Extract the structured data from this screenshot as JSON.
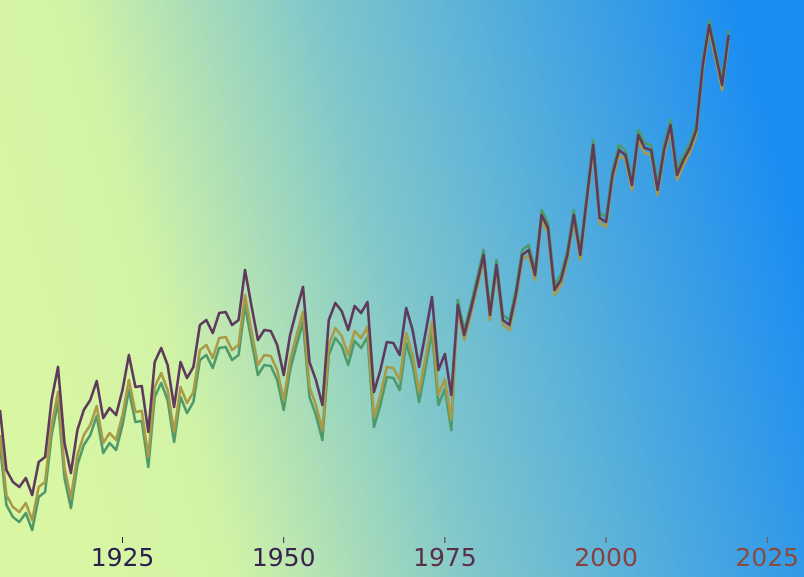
{
  "chart_data": {
    "type": "line",
    "x": [
      1906,
      1907,
      1908,
      1909,
      1910,
      1911,
      1912,
      1913,
      1914,
      1915,
      1916,
      1917,
      1918,
      1919,
      1920,
      1921,
      1922,
      1923,
      1924,
      1925,
      1926,
      1927,
      1928,
      1929,
      1930,
      1931,
      1932,
      1933,
      1934,
      1935,
      1936,
      1937,
      1938,
      1939,
      1940,
      1941,
      1942,
      1943,
      1944,
      1945,
      1946,
      1947,
      1948,
      1949,
      1950,
      1951,
      1952,
      1953,
      1954,
      1955,
      1956,
      1957,
      1958,
      1959,
      1960,
      1961,
      1962,
      1963,
      1964,
      1965,
      1966,
      1967,
      1968,
      1969,
      1970,
      1971,
      1972,
      1973,
      1974,
      1975,
      1976,
      1977,
      1978,
      1979,
      1980,
      1981,
      1982,
      1983,
      1984,
      1985,
      1986,
      1987,
      1988,
      1989,
      1990,
      1991,
      1992,
      1993,
      1994,
      1995,
      1996,
      1997,
      1998,
      1999,
      2000,
      2001,
      2002,
      2003,
      2004,
      2005,
      2006,
      2007,
      2008,
      2009,
      2010,
      2011,
      2012,
      2013,
      2014,
      2015,
      2016,
      2017,
      2018,
      2019
    ],
    "series": [
      {
        "color": "#4f9a6a",
        "values": [
          100,
          40,
          28,
          23,
          32,
          15,
          48,
          53,
          110,
          143,
          67,
          37,
          80,
          100,
          110,
          129,
          92,
          102,
          95,
          120,
          155,
          123,
          124,
          78,
          148,
          162,
          145,
          103,
          148,
          132,
          143,
          185,
          190,
          177,
          197,
          198,
          185,
          190,
          240,
          204,
          170,
          180,
          179,
          165,
          135,
          175,
          200,
          223,
          148,
          130,
          105,
          190,
          207,
          199,
          180,
          204,
          197,
          208,
          118,
          140,
          168,
          167,
          155,
          202,
          180,
          143,
          177,
          213,
          140,
          156,
          115,
          245,
          215,
          240,
          267,
          295,
          235,
          285,
          230,
          225,
          255,
          295,
          300,
          275,
          335,
          322,
          260,
          270,
          295,
          335,
          295,
          350,
          405,
          332,
          328,
          375,
          400,
          395,
          365,
          415,
          402,
          400,
          360,
          400,
          425,
          375,
          390,
          402,
          420,
          485,
          525,
          495,
          465,
          515
        ]
      },
      {
        "color": "#a89a48",
        "values": [
          110,
          50,
          38,
          33,
          42,
          25,
          58,
          63,
          120,
          153,
          77,
          47,
          90,
          110,
          120,
          139,
          102,
          112,
          105,
          130,
          165,
          133,
          134,
          88,
          158,
          172,
          155,
          113,
          158,
          142,
          153,
          195,
          200,
          187,
          207,
          208,
          195,
          200,
          250,
          214,
          180,
          190,
          189,
          175,
          145,
          185,
          210,
          233,
          158,
          140,
          115,
          200,
          217,
          209,
          190,
          214,
          207,
          218,
          128,
          150,
          178,
          177,
          165,
          212,
          190,
          153,
          187,
          223,
          150,
          166,
          125,
          235,
          205,
          230,
          257,
          285,
          225,
          275,
          220,
          215,
          245,
          285,
          290,
          265,
          325,
          312,
          250,
          260,
          285,
          325,
          285,
          340,
          395,
          322,
          318,
          365,
          390,
          385,
          355,
          405,
          392,
          390,
          350,
          390,
          415,
          365,
          380,
          392,
          410,
          475,
          515,
          485,
          455,
          505
        ]
      },
      {
        "color": "#5e3a5c",
        "values": [
          135,
          75,
          63,
          58,
          67,
          50,
          83,
          88,
          145,
          178,
          102,
          72,
          115,
          135,
          145,
          164,
          127,
          137,
          130,
          155,
          190,
          158,
          159,
          113,
          183,
          197,
          180,
          138,
          183,
          167,
          178,
          220,
          225,
          212,
          232,
          233,
          220,
          225,
          275,
          239,
          205,
          215,
          214,
          200,
          170,
          210,
          235,
          258,
          183,
          165,
          140,
          225,
          242,
          234,
          215,
          239,
          232,
          243,
          153,
          175,
          203,
          202,
          190,
          237,
          215,
          178,
          212,
          248,
          175,
          191,
          150,
          240,
          210,
          235,
          262,
          290,
          230,
          280,
          225,
          220,
          250,
          290,
          295,
          270,
          330,
          317,
          255,
          265,
          290,
          330,
          290,
          345,
          400,
          327,
          323,
          370,
          395,
          390,
          360,
          410,
          397,
          395,
          355,
          395,
          420,
          370,
          385,
          397,
          415,
          480,
          520,
          490,
          460,
          510
        ]
      }
    ],
    "xlim": [
      1906,
      2030.7
    ],
    "xticks": [
      1925,
      1950,
      1975,
      2000,
      2025
    ],
    "xtick_colors": [
      "#2a2050",
      "#3a2450",
      "#5a3048",
      "#8a4040",
      "#8a4a40"
    ],
    "ylim": [
      0,
      545
    ]
  }
}
